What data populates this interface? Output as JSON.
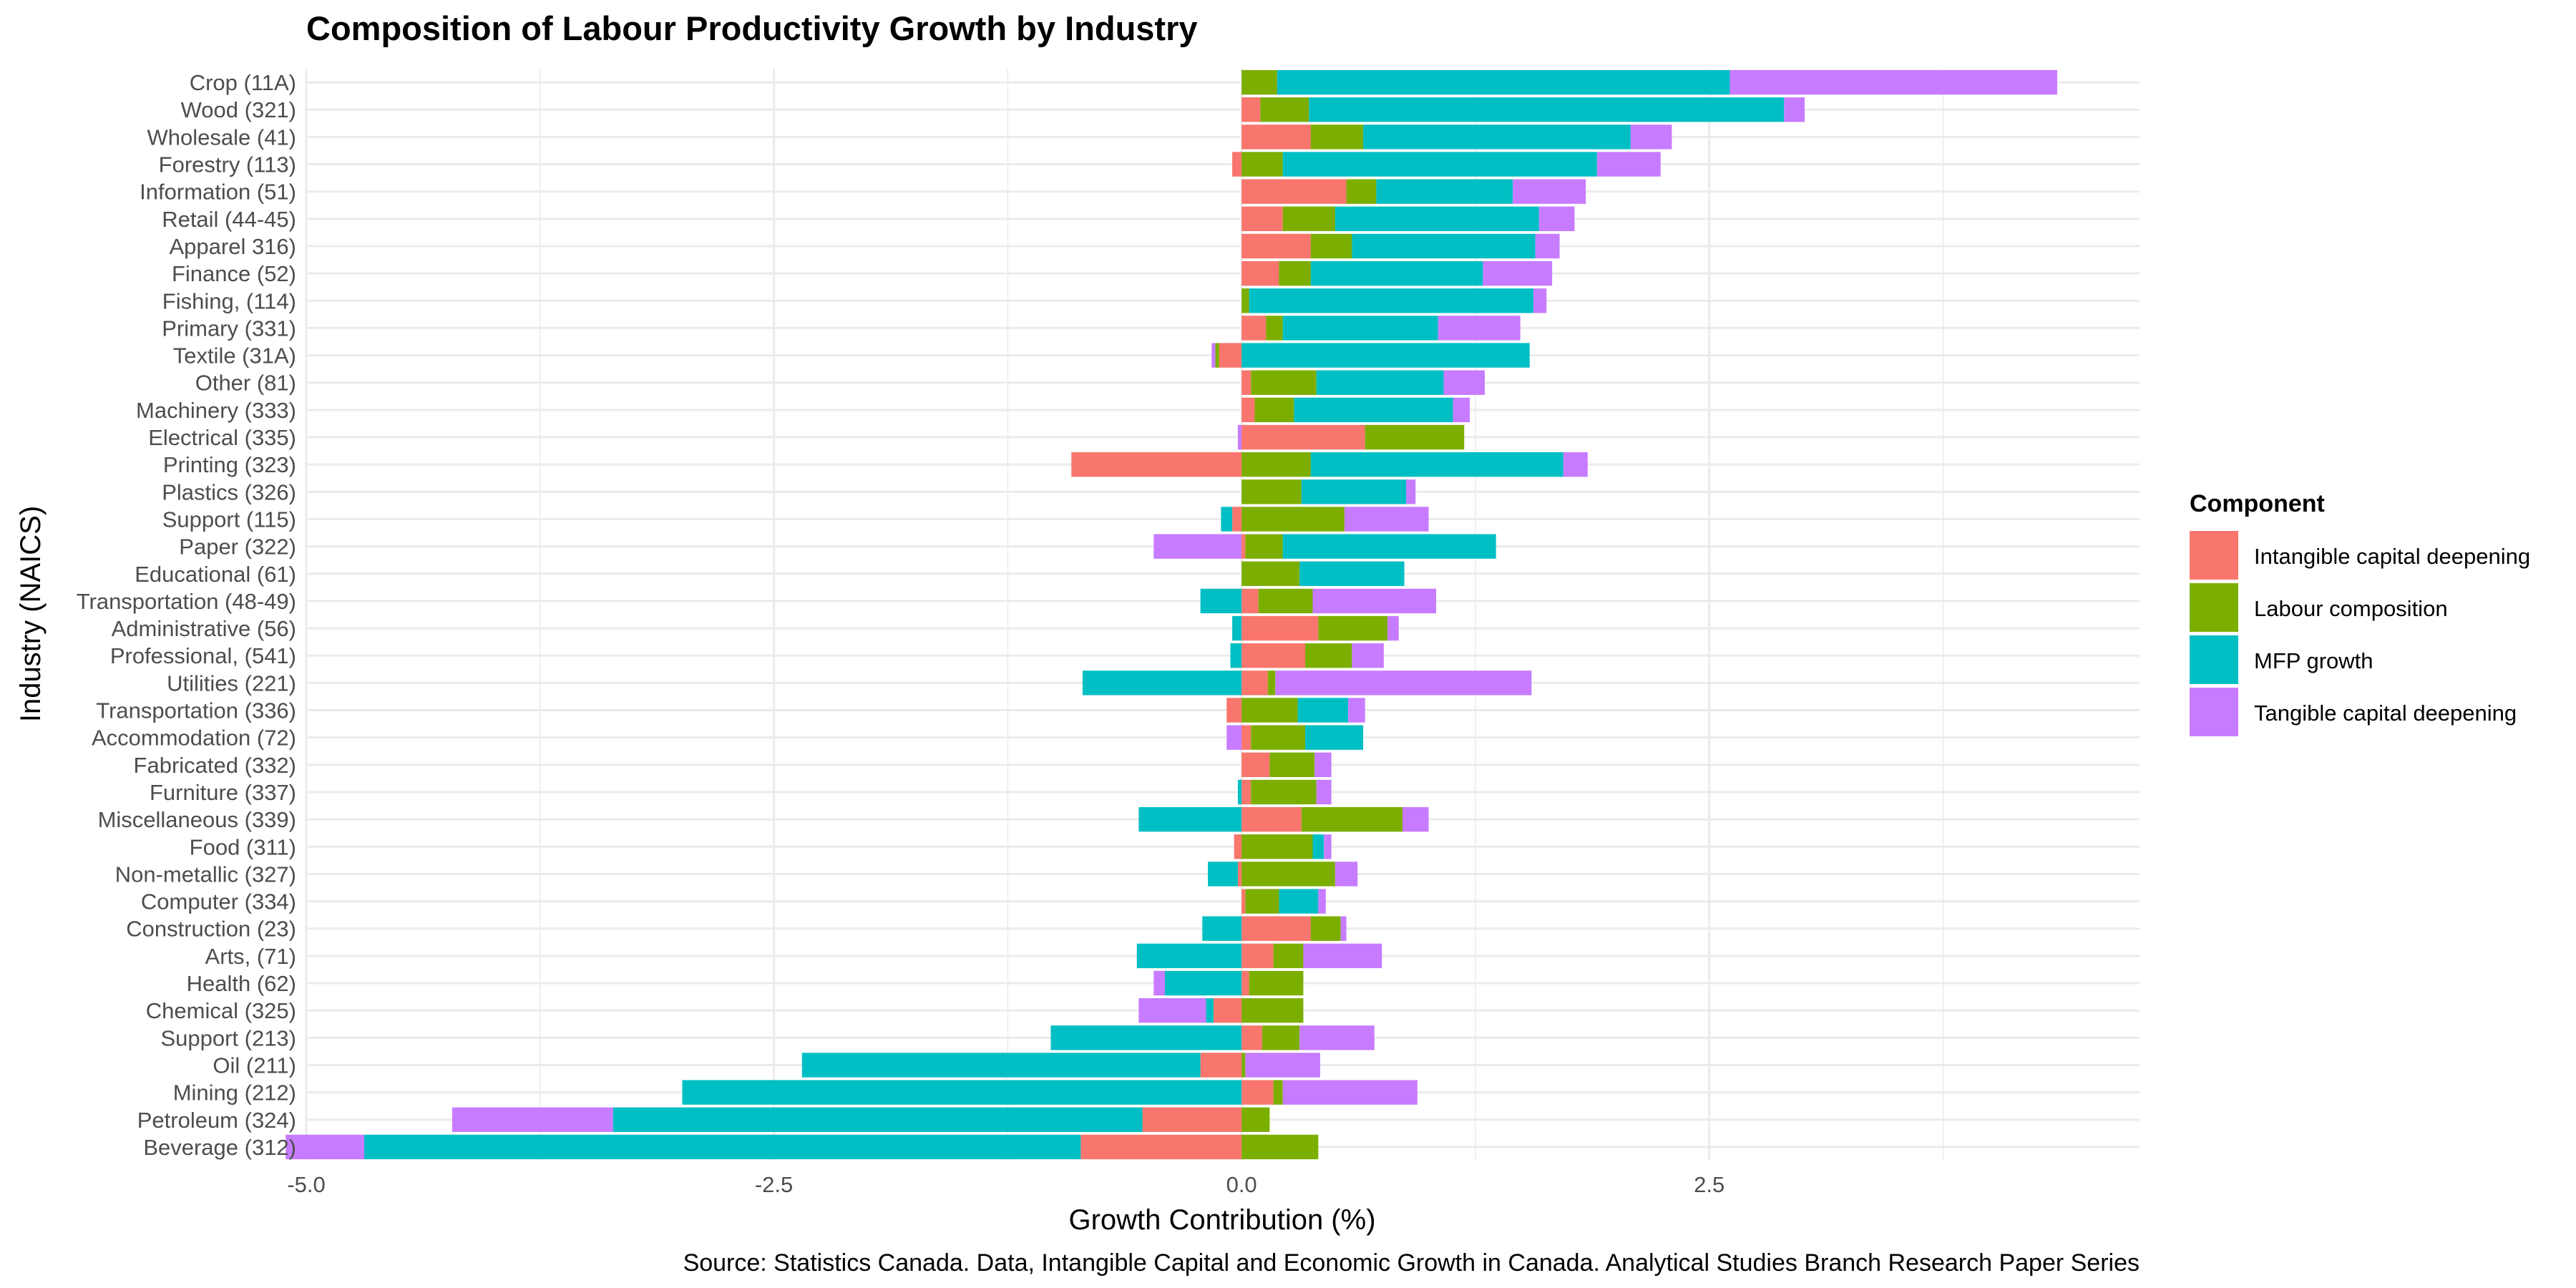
{
  "chart_data": {
    "type": "bar",
    "orientation": "horizontal",
    "stacking": "diverging",
    "title": "Composition of Labour Productivity Growth by Industry",
    "xlabel": "Growth Contribution (%)",
    "ylabel": "Industry (NAICS)",
    "caption": "Source: Statistics Canada. Data, Intangible Capital and Economic Growth in Canada. Analytical Studies Branch Research Paper Series",
    "xlim": [
      -5.0,
      4.8
    ],
    "x_ticks": [
      -5.0,
      -2.5,
      0.0,
      2.5
    ],
    "x_tick_labels": [
      "-5.0",
      "-2.5",
      "0.0",
      "2.5"
    ],
    "grid": true,
    "legend": {
      "title": "Component",
      "position": "right",
      "entries": [
        "Intangible capital deepening",
        "Labour composition",
        "MFP growth",
        "Tangible capital deepening"
      ]
    },
    "colors": {
      "Intangible capital deepening": "#F8766D",
      "Labour composition": "#7CAE00",
      "MFP growth": "#00BFC4",
      "Tangible capital deepening": "#C77CFF"
    },
    "categories": [
      "Crop (11A)",
      "Wood (321)",
      "Wholesale (41)",
      "Forestry (113)",
      "Information (51)",
      "Retail (44-45)",
      "Apparel 316)",
      "Finance (52)",
      "Fishing, (114)",
      "Primary (331)",
      "Textile (31A)",
      "Other (81)",
      "Machinery (333)",
      "Electrical (335)",
      "Printing (323)",
      "Plastics (326)",
      "Support (115)",
      "Paper (322)",
      "Educational (61)",
      "Transportation (48-49)",
      "Administrative (56)",
      "Professional, (541)",
      "Utilities (221)",
      "Transportation (336)",
      "Accommodation (72)",
      "Fabricated (332)",
      "Furniture (337)",
      "Miscellaneous (339)",
      "Food (311)",
      "Non-metallic (327)",
      "Computer (334)",
      "Construction (23)",
      "Arts, (71)",
      "Health (62)",
      "Chemical (325)",
      "Support (213)",
      "Oil (211)",
      "Mining (212)",
      "Petroleum (324)",
      "Beverage (312)"
    ],
    "series": [
      {
        "name": "Tangible capital deepening",
        "values": [
          1.75,
          0.11,
          0.22,
          0.34,
          0.39,
          0.19,
          0.13,
          0.37,
          0.07,
          0.44,
          -0.02,
          0.22,
          0.09,
          -0.02,
          0.13,
          0.05,
          0.45,
          -0.47,
          0.0,
          0.66,
          0.06,
          0.17,
          1.37,
          0.09,
          -0.08,
          0.09,
          0.08,
          0.14,
          0.04,
          0.12,
          0.04,
          0.03,
          0.42,
          -0.06,
          -0.36,
          0.4,
          0.4,
          0.72,
          -0.86,
          -0.42
        ]
      },
      {
        "name": "MFP growth",
        "values": [
          2.42,
          2.54,
          1.43,
          1.68,
          0.73,
          1.09,
          0.98,
          0.92,
          1.52,
          0.83,
          1.54,
          0.68,
          0.85,
          0.0,
          1.35,
          0.56,
          -0.06,
          1.14,
          0.56,
          -0.22,
          -0.05,
          -0.06,
          -0.85,
          0.27,
          0.31,
          0.0,
          -0.02,
          -0.55,
          0.06,
          -0.16,
          0.21,
          -0.21,
          -0.56,
          -0.41,
          -0.04,
          -1.02,
          -2.13,
          -2.99,
          -2.83,
          -3.83
        ]
      },
      {
        "name": "Labour composition",
        "values": [
          0.19,
          0.26,
          0.28,
          0.22,
          0.16,
          0.28,
          0.22,
          0.17,
          0.04,
          0.09,
          -0.02,
          0.35,
          0.21,
          0.53,
          0.37,
          0.32,
          0.55,
          0.2,
          0.31,
          0.29,
          0.37,
          0.25,
          0.04,
          0.3,
          0.29,
          0.24,
          0.35,
          0.54,
          0.38,
          0.5,
          0.18,
          0.16,
          0.16,
          0.29,
          0.33,
          0.2,
          0.02,
          0.05,
          0.15,
          0.41
        ]
      },
      {
        "name": "Intangible capital deepening",
        "values": [
          0.0,
          0.1,
          0.37,
          -0.05,
          0.56,
          0.22,
          0.37,
          0.2,
          0.0,
          0.13,
          -0.12,
          0.05,
          0.07,
          0.66,
          -0.91,
          0.0,
          -0.05,
          0.02,
          0.0,
          0.09,
          0.41,
          0.34,
          0.14,
          -0.08,
          0.05,
          0.15,
          0.05,
          0.32,
          -0.04,
          -0.02,
          0.02,
          0.37,
          0.17,
          0.04,
          -0.15,
          0.11,
          -0.22,
          0.17,
          -0.53,
          -0.86
        ]
      }
    ]
  }
}
